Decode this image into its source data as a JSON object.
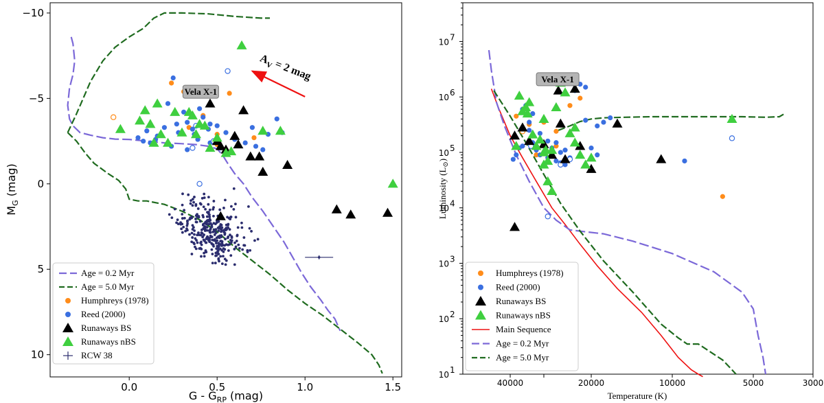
{
  "colors": {
    "humphreys": "#ff8c1a",
    "reed": "#3a6fe0",
    "bs": "#000000",
    "nbs": "#3fcf3f",
    "rcw38": "#2b2d6e",
    "age02": "#7b68d8",
    "age50": "#1f6b1f",
    "ms": "#ee1111",
    "arrow": "#ee1111"
  },
  "chart_data": [
    {
      "type": "scatter",
      "xlabel": "G - G",
      "xlabel_sub": "RP",
      "xlabel_unit": " (mag)",
      "ylabel": "M",
      "ylabel_sub": "G",
      "ylabel_unit": " (mag)",
      "xlim": [
        -0.45,
        1.55
      ],
      "ylim": [
        11.3,
        -10.6
      ],
      "xticks": [
        0.0,
        0.5,
        1.0,
        1.5
      ],
      "xtick_labels": [
        "0.0",
        "0.5",
        "1.0",
        "1.5"
      ],
      "yticks": [
        -10,
        -5,
        0,
        5,
        10
      ],
      "ytick_labels": [
        "−10",
        "−5",
        "0",
        "5",
        "10"
      ],
      "legend_position": "lower-left",
      "annotation": {
        "text": "Vela X-1",
        "x": 0.45,
        "y": -5.25
      },
      "arrow": {
        "text": "A",
        "text_sub": "V",
        "text_rest": " = 2 mag",
        "from": [
          1.0,
          -5.1
        ],
        "to": [
          0.7,
          -6.6
        ]
      },
      "series": [
        {
          "name": "Age = 0.2 Myr",
          "kind": "line",
          "dash": "dash",
          "x": [
            -0.33,
            -0.32,
            -0.31,
            -0.32,
            -0.34,
            -0.35,
            -0.34,
            -0.32,
            -0.28,
            -0.22,
            -0.15,
            -0.08,
            0.0,
            0.1,
            0.2,
            0.3,
            0.38,
            0.45,
            0.5,
            0.53,
            0.56,
            0.6,
            0.65,
            0.7,
            0.76,
            0.82,
            0.88,
            0.93,
            0.98,
            1.03,
            1.09,
            1.13,
            1.17,
            1.2
          ],
          "y": [
            -8.6,
            -8.2,
            -7.2,
            -6.4,
            -5.6,
            -4.6,
            -3.8,
            -3.4,
            -3.0,
            -2.85,
            -2.7,
            -2.62,
            -2.6,
            -2.5,
            -2.4,
            -2.35,
            -2.3,
            -2.2,
            -2.05,
            -1.7,
            -1.2,
            -0.6,
            0.0,
            0.8,
            1.6,
            2.5,
            3.4,
            4.3,
            5.2,
            6.0,
            6.8,
            7.4,
            7.9,
            8.6
          ]
        },
        {
          "name": "Age = 5.0 Myr",
          "kind": "line",
          "dash": "dash",
          "x": [
            -0.35,
            -0.3,
            -0.25,
            -0.2,
            -0.12,
            -0.06,
            -0.02,
            0.0,
            0.05,
            0.1,
            0.2,
            0.3,
            0.4,
            0.5,
            0.6,
            0.7,
            0.8,
            0.9,
            1.0,
            1.1,
            1.2,
            1.3,
            1.38,
            1.42,
            1.44
          ],
          "y": [
            -3.0,
            -2.5,
            -1.8,
            -1.2,
            -0.6,
            -0.2,
            0.3,
            0.9,
            1.0,
            1.0,
            1.2,
            1.6,
            2.1,
            2.8,
            3.7,
            4.5,
            5.3,
            6.2,
            7.0,
            7.7,
            8.5,
            9.3,
            10.0,
            10.6,
            11.1
          ]
        },
        {
          "name": "Age = 5.0 Myr (upper branch)",
          "kind": "line",
          "dash": "dash",
          "x": [
            -0.35,
            -0.3,
            -0.22,
            -0.15,
            -0.08,
            0.0,
            0.08,
            0.14,
            0.2,
            0.3,
            0.45,
            0.6,
            0.75,
            0.8
          ],
          "y": [
            -3.0,
            -4.1,
            -6.0,
            -7.2,
            -8.0,
            -8.6,
            -9.1,
            -9.7,
            -10.0,
            -10.0,
            -9.95,
            -9.8,
            -9.7,
            -9.7
          ]
        },
        {
          "name": "Humphreys (1978)",
          "kind": "scatter",
          "marker": "circle",
          "x": [
            0.24,
            0.31,
            0.34,
            0.42,
            0.5,
            0.57,
            0.71,
            0.5
          ],
          "y": [
            -5.9,
            -5.4,
            -3.3,
            -4.0,
            -2.9,
            -5.3,
            -2.7,
            -2.3
          ]
        },
        {
          "name": "Humphreys (1978) open",
          "kind": "scatter",
          "marker": "open-circle",
          "x": [
            -0.09
          ],
          "y": [
            -3.9
          ]
        },
        {
          "name": "Reed (2000)",
          "kind": "scatter",
          "marker": "circle",
          "x": [
            0.25,
            0.22,
            0.31,
            0.42,
            0.46,
            0.36,
            0.28,
            0.16,
            0.08,
            0.12,
            0.24,
            0.33,
            0.39,
            0.45,
            0.5,
            0.55,
            0.6,
            0.66,
            0.72,
            0.76,
            0.84,
            0.87,
            0.4,
            0.33,
            0.2,
            0.1,
            0.05,
            0.15,
            0.27,
            0.37,
            0.46,
            0.52,
            0.6,
            0.7,
            0.79
          ],
          "y": [
            -6.2,
            -4.7,
            -4.2,
            -3.9,
            -3.5,
            -3.2,
            -3.0,
            -2.8,
            -2.5,
            -2.4,
            -2.2,
            -2.0,
            -2.6,
            -3.2,
            -3.4,
            -3.0,
            -2.7,
            -2.4,
            -2.2,
            -2.0,
            -3.8,
            -3.0,
            -4.4,
            -3.6,
            -3.3,
            -3.1,
            -2.7,
            -2.6,
            -3.5,
            -2.9,
            -2.4,
            -2.1,
            -2.6,
            -3.3,
            -2.9
          ]
        },
        {
          "name": "Reed (2000) open",
          "kind": "scatter",
          "marker": "open-circle",
          "x": [
            0.56,
            0.38,
            0.4,
            0.36,
            0.48
          ],
          "y": [
            -6.6,
            -3.4,
            0.0,
            -2.1,
            -2.5
          ]
        },
        {
          "name": "Runaways BS",
          "kind": "scatter",
          "marker": "triangle",
          "x": [
            0.46,
            0.5,
            0.52,
            0.55,
            0.6,
            0.65,
            0.62,
            0.69,
            0.74,
            0.76,
            0.9,
            0.52,
            1.18,
            1.26,
            1.47
          ],
          "y": [
            -4.7,
            -2.5,
            -2.2,
            -2.0,
            -2.8,
            -4.3,
            -2.3,
            -1.6,
            -1.6,
            -0.7,
            -1.1,
            1.9,
            1.5,
            1.8,
            1.7
          ]
        },
        {
          "name": "Runaways nBS",
          "kind": "scatter",
          "marker": "triangle",
          "x": [
            -0.05,
            0.06,
            0.09,
            0.12,
            0.16,
            0.18,
            0.22,
            0.26,
            0.3,
            0.34,
            0.36,
            0.38,
            0.4,
            0.43,
            0.46,
            0.5,
            0.55,
            0.58,
            0.64,
            0.76,
            0.86,
            1.5,
            0.14
          ],
          "y": [
            -3.2,
            -3.7,
            -4.3,
            -3.5,
            -4.7,
            -2.9,
            -2.4,
            -4.2,
            -3.0,
            -4.2,
            -4.0,
            -2.9,
            -3.5,
            -3.4,
            -2.1,
            -2.7,
            -1.8,
            -1.9,
            -8.1,
            -3.1,
            -3.1,
            0.0,
            -2.4
          ]
        },
        {
          "name": "RCW 38",
          "kind": "scatter",
          "marker": "errorbar-dot",
          "x": [
            1.08
          ],
          "y": [
            4.3
          ],
          "xerr": 0.08
        }
      ]
    },
    {
      "type": "scatter",
      "xlabel": "Temperature (K)",
      "ylabel": "Luminosity (L",
      "ylabel_sym": "⊙",
      "ylabel_tail": ")",
      "xscale": "log-reversed",
      "yscale": "log",
      "xlim": [
        60000,
        3000
      ],
      "ylim": [
        10,
        50000000
      ],
      "xticks": [
        40000,
        30000,
        20000,
        10000,
        5000,
        3000
      ],
      "xtick_labels": [
        "40000",
        "",
        "20000",
        "10000",
        "5000",
        "3000"
      ],
      "yticks": [
        10,
        100,
        1000,
        10000,
        100000,
        1000000,
        10000000
      ],
      "ytick_labels": [
        "10",
        "10",
        "10",
        "10",
        "10",
        "10",
        "10"
      ],
      "ytick_exps": [
        "1",
        "2",
        "3",
        "4",
        "5",
        "6",
        "7"
      ],
      "legend_position": "lower-left",
      "annotation": {
        "text": "Vela X-1",
        "x": 26500,
        "y": 2000000
      },
      "series": [
        {
          "name": "Main Sequence",
          "kind": "line",
          "dash": "solid",
          "x": [
            47000,
            44000,
            40000,
            36000,
            32000,
            28000,
            25000,
            22000,
            19000,
            16000,
            13000,
            11000,
            9500,
            8500,
            8000,
            7700
          ],
          "y": [
            1400000,
            600000,
            200000,
            80000,
            30000,
            10000,
            5000,
            2200,
            900,
            350,
            130,
            50,
            20,
            12,
            10,
            9
          ]
        },
        {
          "name": "Age = 0.2 Myr",
          "kind": "line",
          "dash": "dash",
          "x": [
            48000,
            47000,
            45000,
            42000,
            38000,
            34000,
            30000,
            27000,
            24000,
            21000,
            18000,
            14000,
            10000,
            7000,
            5500,
            5000,
            4800,
            4600,
            4500
          ],
          "y": [
            7000000,
            3000000,
            800000,
            300000,
            90000,
            30000,
            10000,
            6000,
            4000,
            3700,
            3400,
            2500,
            1500,
            700,
            300,
            150,
            50,
            20,
            10
          ]
        },
        {
          "name": "Age = 5.0 Myr",
          "kind": "line",
          "dash": "dash",
          "x": [
            46000,
            40000,
            35000,
            30000,
            26000,
            22000,
            18000,
            14000,
            11000,
            9500,
            8800,
            8000,
            7200,
            6500,
            6000,
            5800
          ],
          "y": [
            1300000,
            450000,
            150000,
            40000,
            12000,
            3800,
            1100,
            300,
            80,
            45,
            35,
            35,
            25,
            18,
            12,
            10
          ]
        },
        {
          "name": "Age = 5.0 Myr (upper branch)",
          "kind": "line",
          "dash": "dash",
          "x": [
            26500,
            24000,
            22000,
            20000,
            18000,
            15000,
            12000,
            9000,
            7000,
            5500,
            4500,
            4000,
            3800
          ],
          "y": [
            250000,
            300000,
            360000,
            400000,
            420000,
            430000,
            440000,
            440000,
            440000,
            440000,
            430000,
            440000,
            510000
          ]
        },
        {
          "name": "Humphreys (1978)",
          "kind": "scatter",
          "marker": "circle",
          "x": [
            38000,
            34000,
            30000,
            27000,
            24000,
            22000,
            27000,
            32000,
            6500
          ],
          "y": [
            450000,
            320000,
            350000,
            240000,
            700000,
            950000,
            130000,
            90000,
            16000
          ]
        },
        {
          "name": "Humphreys (1978) open",
          "kind": "scatter",
          "marker": "open-circle",
          "x": [
            36000
          ],
          "y": [
            240000
          ]
        },
        {
          "name": "Reed (2000)",
          "kind": "scatter",
          "marker": "circle",
          "x": [
            39000,
            38000,
            37000,
            36000,
            35000,
            34000,
            33000,
            32000,
            31000,
            30000,
            29000,
            28000,
            27000,
            26000,
            25000,
            24000,
            23000,
            22000,
            21000,
            20000,
            19000,
            18000,
            17000,
            36000,
            34000,
            31000,
            29000,
            27000,
            25000,
            21000,
            19000,
            9000,
            33000,
            30000,
            26000
          ],
          "y": [
            75000,
            90000,
            120000,
            600000,
            700000,
            350000,
            150000,
            110000,
            90000,
            100000,
            80000,
            120000,
            150000,
            100000,
            110000,
            80000,
            1300000,
            1700000,
            1500000,
            120000,
            90000,
            350000,
            420000,
            130000,
            250000,
            220000,
            160000,
            70000,
            60000,
            380000,
            300000,
            70000,
            500000,
            400000,
            65000
          ]
        },
        {
          "name": "Reed (2000) open",
          "kind": "scatter",
          "marker": "open-circle",
          "x": [
            29000,
            26000,
            6000,
            33500,
            24000
          ],
          "y": [
            7000,
            60000,
            180000,
            130000,
            75000
          ]
        },
        {
          "name": "Runaways BS",
          "kind": "scatter",
          "marker": "triangle",
          "x": [
            38500,
            36000,
            34000,
            30000,
            28000,
            26500,
            26000,
            25000,
            23000,
            22000,
            20000,
            16000,
            11000,
            38500
          ],
          "y": [
            200000,
            280000,
            160000,
            140000,
            90000,
            1300000,
            330000,
            75000,
            1400000,
            130000,
            50000,
            330000,
            75000,
            4500
          ]
        },
        {
          "name": "Runaways nBS",
          "kind": "scatter",
          "marker": "triangle",
          "x": [
            38000,
            37000,
            36000,
            35000,
            34500,
            34000,
            33000,
            32000,
            31000,
            30000,
            30000,
            29000,
            28000,
            28000,
            27000,
            26000,
            25000,
            24000,
            23000,
            23000,
            22000,
            21000,
            20000,
            30000,
            29500,
            29000,
            6000
          ],
          "y": [
            130000,
            1050000,
            550000,
            650000,
            500000,
            800000,
            210000,
            130000,
            170000,
            100000,
            60000,
            30000,
            20000,
            110000,
            650000,
            1800000,
            1200000,
            220000,
            280000,
            150000,
            90000,
            60000,
            80000,
            400000,
            110000,
            70000,
            400000
          ]
        }
      ]
    }
  ]
}
